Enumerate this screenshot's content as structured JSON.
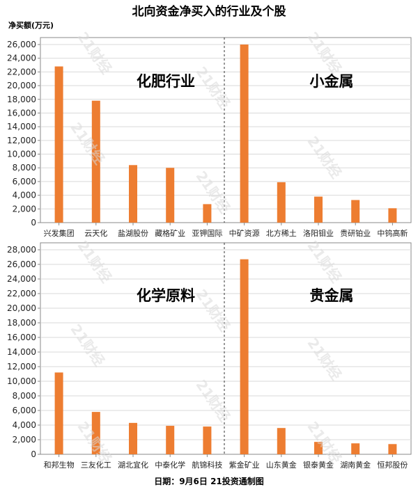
{
  "title": "北向资金净买入的行业及个股",
  "unit_label": "净买额(万元)",
  "footer": "日期：9月6日 21投资通制图",
  "watermark": "21财经",
  "colors": {
    "bar": "#ed7d31",
    "grid": "#d9d9d9",
    "axis": "#888888",
    "divider": "#333333"
  },
  "chart_data": [
    {
      "type": "bar",
      "ylim": [
        0,
        26000
      ],
      "yticks": [
        0,
        2000,
        4000,
        6000,
        8000,
        10000,
        12000,
        14000,
        16000,
        18000,
        20000,
        22000,
        24000,
        26000
      ],
      "grid": true,
      "groups": [
        {
          "label": "化肥行业",
          "categories": [
            "兴发集团",
            "云天化",
            "盐湖股份",
            "藏格矿业",
            "亚钾国际"
          ],
          "values": [
            22800,
            17800,
            8400,
            8000,
            2700
          ]
        },
        {
          "label": "小金属",
          "categories": [
            "中矿资源",
            "北方稀土",
            "洛阳钼业",
            "贵研铂业",
            "中钨高新"
          ],
          "values": [
            26000,
            5900,
            3800,
            3300,
            2100
          ]
        }
      ]
    },
    {
      "type": "bar",
      "ylim": [
        0,
        28000
      ],
      "yticks": [
        0,
        2000,
        4000,
        6000,
        8000,
        10000,
        12000,
        14000,
        16000,
        18000,
        20000,
        22000,
        24000,
        26000,
        28000
      ],
      "grid": true,
      "groups": [
        {
          "label": "化学原料",
          "categories": [
            "和邦生物",
            "三友化工",
            "湖北宜化",
            "中泰化学",
            "航锦科技"
          ],
          "values": [
            11200,
            5800,
            4300,
            3900,
            3800
          ]
        },
        {
          "label": "贵金属",
          "categories": [
            "紫金矿业",
            "山东黄金",
            "银泰黄金",
            "湖南黄金",
            "恒邦股份"
          ],
          "values": [
            26700,
            3600,
            1700,
            1500,
            1400
          ]
        }
      ]
    }
  ]
}
